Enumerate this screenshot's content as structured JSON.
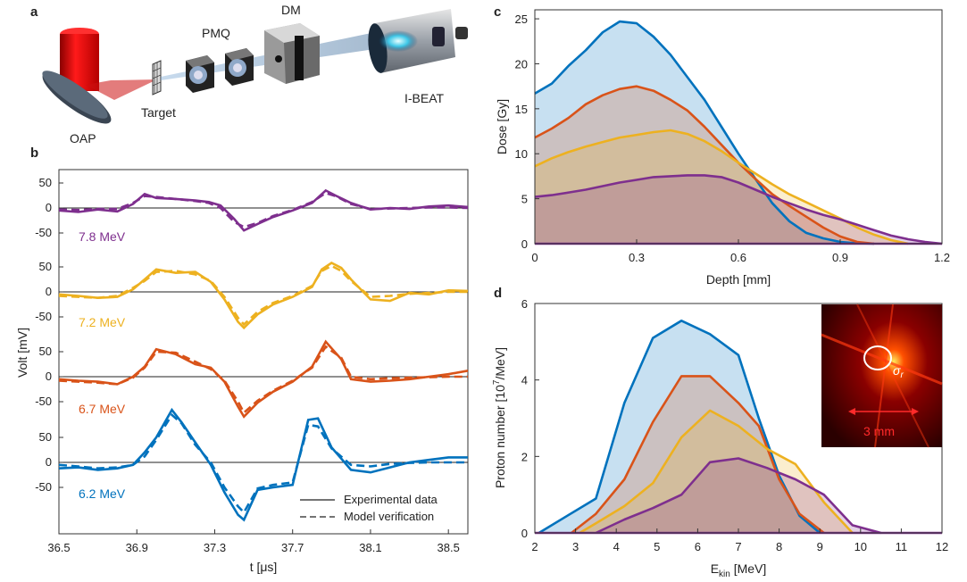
{
  "panel_labels": [
    "a",
    "b",
    "c",
    "d"
  ],
  "setup_labels": {
    "pmq": "PMQ",
    "dm": "DM",
    "target": "Target",
    "oap": "OAP",
    "ibeat": "I-BEAT"
  },
  "inset": {
    "sigma_label": "σ",
    "sigma_sub": "r",
    "scale_label": "3 mm"
  },
  "colors": {
    "blue": "#0072bd",
    "orange": "#d95319",
    "yellow": "#edb120",
    "purple": "#7e2f8e"
  },
  "chart_data": [
    {
      "id": "b",
      "type": "line",
      "xlabel": "t [μs]",
      "ylabel": "Volt [mV]",
      "xlim": [
        36.5,
        38.6
      ],
      "x_ticks": [
        "36.5",
        "36.9",
        "37.3",
        "37.7",
        "38.1",
        "38.5"
      ],
      "y_tick_labels": [
        "50",
        "0",
        "-50"
      ],
      "legend": {
        "placement": "bottom-right",
        "entries": [
          {
            "label": "Experimental data",
            "style": "solid"
          },
          {
            "label": "Model verification",
            "style": "dashed"
          }
        ]
      },
      "series": [
        {
          "name": "7.8 MeV",
          "color": "purple",
          "x": [
            36.5,
            36.6,
            36.7,
            36.8,
            36.88,
            36.94,
            37.0,
            37.1,
            37.2,
            37.27,
            37.33,
            37.4,
            37.45,
            37.52,
            37.6,
            37.7,
            37.8,
            37.87,
            37.92,
            38.0,
            38.1,
            38.2,
            38.3,
            38.4,
            38.5,
            38.6
          ],
          "experimental": [
            -5,
            -8,
            -3,
            -7,
            8,
            28,
            20,
            18,
            15,
            12,
            5,
            -22,
            -45,
            -32,
            -18,
            -5,
            10,
            35,
            25,
            10,
            -3,
            0,
            -2,
            3,
            5,
            2
          ],
          "model": [
            -3,
            -4,
            -2,
            -2,
            10,
            24,
            22,
            18,
            14,
            10,
            0,
            -28,
            -38,
            -30,
            -16,
            -4,
            12,
            30,
            24,
            8,
            -2,
            -1,
            0,
            1,
            1,
            0
          ]
        },
        {
          "name": "7.2 MeV",
          "color": "yellow",
          "x": [
            36.5,
            36.6,
            36.7,
            36.8,
            36.88,
            36.94,
            37.0,
            37.1,
            37.2,
            37.28,
            37.35,
            37.42,
            37.45,
            37.52,
            37.6,
            37.7,
            37.8,
            37.85,
            37.9,
            37.95,
            38.0,
            38.1,
            38.2,
            38.3,
            38.4,
            38.5,
            38.6
          ],
          "experimental": [
            -5,
            -8,
            -12,
            -10,
            5,
            25,
            45,
            38,
            40,
            20,
            -15,
            -60,
            -72,
            -45,
            -25,
            -10,
            10,
            45,
            58,
            48,
            25,
            -15,
            -18,
            -2,
            -5,
            3,
            2
          ],
          "model": [
            -8,
            -10,
            -12,
            -8,
            8,
            22,
            40,
            42,
            35,
            22,
            -10,
            -52,
            -65,
            -40,
            -22,
            -8,
            12,
            42,
            52,
            42,
            22,
            -10,
            -8,
            -4,
            -2,
            0,
            0
          ]
        },
        {
          "name": "6.7 MeV",
          "color": "orange",
          "x": [
            36.5,
            36.6,
            36.7,
            36.8,
            36.88,
            36.94,
            37.0,
            37.1,
            37.2,
            37.28,
            37.35,
            37.42,
            37.45,
            37.52,
            37.6,
            37.7,
            37.8,
            37.87,
            37.95,
            38.0,
            38.1,
            38.2,
            38.3,
            38.4,
            38.5,
            38.6
          ],
          "experimental": [
            -5,
            -8,
            -10,
            -15,
            0,
            20,
            55,
            45,
            25,
            18,
            -10,
            -60,
            -80,
            -52,
            -30,
            -10,
            20,
            70,
            35,
            -5,
            -10,
            -8,
            -5,
            0,
            5,
            12
          ],
          "model": [
            -8,
            -10,
            -12,
            -15,
            -2,
            18,
            50,
            48,
            30,
            15,
            -8,
            -50,
            -72,
            -48,
            -28,
            -8,
            18,
            60,
            38,
            0,
            -5,
            -3,
            -2,
            -1,
            0,
            0
          ]
        },
        {
          "name": "6.2 MeV",
          "color": "blue",
          "x": [
            36.5,
            36.6,
            36.7,
            36.8,
            36.88,
            36.94,
            37.0,
            37.08,
            37.13,
            37.2,
            37.28,
            37.35,
            37.42,
            37.45,
            37.52,
            37.6,
            37.7,
            37.78,
            37.83,
            37.9,
            38.0,
            38.1,
            38.2,
            38.3,
            38.4,
            38.5,
            38.6
          ],
          "experimental": [
            -12,
            -10,
            -15,
            -12,
            -5,
            20,
            50,
            105,
            80,
            40,
            -5,
            -60,
            -105,
            -115,
            -55,
            -50,
            -45,
            85,
            88,
            30,
            -15,
            -20,
            -10,
            0,
            5,
            10,
            10
          ],
          "model": [
            -5,
            -8,
            -12,
            -10,
            -5,
            12,
            45,
            95,
            78,
            35,
            0,
            -50,
            -88,
            -100,
            -52,
            -45,
            -40,
            75,
            72,
            28,
            -5,
            -8,
            -3,
            -1,
            0,
            0,
            0
          ]
        }
      ]
    },
    {
      "id": "c",
      "type": "area",
      "xlabel": "Depth [mm]",
      "ylabel": "Dose [Gy]",
      "xlim": [
        0,
        1.2
      ],
      "ylim": [
        0,
        26
      ],
      "x_ticks": [
        "0",
        "0.3",
        "0.6",
        "0.9",
        "1.2"
      ],
      "y_ticks": [
        "0",
        "5",
        "10",
        "15",
        "20",
        "25"
      ],
      "series": [
        {
          "color": "blue",
          "x": [
            0,
            0.05,
            0.1,
            0.15,
            0.2,
            0.25,
            0.3,
            0.35,
            0.4,
            0.45,
            0.5,
            0.55,
            0.6,
            0.65,
            0.7,
            0.75,
            0.8,
            0.85,
            0.9,
            0.95,
            1.0
          ],
          "y": [
            16.7,
            17.8,
            19.8,
            21.5,
            23.5,
            24.7,
            24.5,
            23.0,
            21.0,
            18.5,
            16.0,
            13.0,
            10.0,
            7.2,
            4.5,
            2.5,
            1.2,
            0.6,
            0.2,
            0.05,
            0
          ]
        },
        {
          "color": "orange",
          "x": [
            0,
            0.05,
            0.1,
            0.15,
            0.2,
            0.25,
            0.3,
            0.35,
            0.4,
            0.45,
            0.5,
            0.55,
            0.6,
            0.65,
            0.7,
            0.75,
            0.8,
            0.85,
            0.9,
            0.95,
            1.0
          ],
          "y": [
            11.8,
            12.8,
            14.0,
            15.5,
            16.5,
            17.2,
            17.5,
            17.0,
            16.0,
            14.8,
            13.0,
            11.0,
            9.0,
            7.2,
            5.5,
            4.2,
            3.0,
            1.8,
            0.8,
            0.2,
            0
          ]
        },
        {
          "color": "yellow",
          "x": [
            0,
            0.05,
            0.1,
            0.15,
            0.2,
            0.25,
            0.3,
            0.35,
            0.4,
            0.45,
            0.5,
            0.55,
            0.6,
            0.65,
            0.7,
            0.75,
            0.8,
            0.85,
            0.9,
            0.95,
            1.0,
            1.05,
            1.1
          ],
          "y": [
            8.6,
            9.5,
            10.2,
            10.8,
            11.3,
            11.8,
            12.1,
            12.4,
            12.6,
            12.2,
            11.4,
            10.3,
            9.0,
            7.8,
            6.6,
            5.5,
            4.6,
            3.7,
            2.8,
            1.8,
            1.0,
            0.4,
            0
          ]
        },
        {
          "color": "purple",
          "x": [
            0,
            0.05,
            0.1,
            0.15,
            0.2,
            0.25,
            0.3,
            0.35,
            0.4,
            0.45,
            0.5,
            0.55,
            0.6,
            0.65,
            0.7,
            0.75,
            0.8,
            0.85,
            0.9,
            0.95,
            1.0,
            1.05,
            1.1,
            1.15,
            1.2
          ],
          "y": [
            5.2,
            5.4,
            5.7,
            6.0,
            6.4,
            6.8,
            7.1,
            7.4,
            7.5,
            7.6,
            7.6,
            7.4,
            6.8,
            6.0,
            5.2,
            4.5,
            3.8,
            3.2,
            2.7,
            2.1,
            1.5,
            0.9,
            0.5,
            0.2,
            0
          ]
        }
      ]
    },
    {
      "id": "d",
      "type": "area",
      "xlabel": "E",
      "xlabel_sub": "kin",
      "xlabel_unit": " [MeV]",
      "ylabel": "Proton number  [10",
      "ylabel_sup": "7",
      "ylabel_unit": "/MeV]",
      "xlim": [
        2,
        12
      ],
      "ylim": [
        0,
        6
      ],
      "x_ticks": [
        "2",
        "3",
        "4",
        "5",
        "6",
        "7",
        "8",
        "9",
        "10",
        "11",
        "12"
      ],
      "y_ticks": [
        "0",
        "2",
        "4",
        "6"
      ],
      "series": [
        {
          "color": "blue",
          "x": [
            2.1,
            2.8,
            3.5,
            4.2,
            4.9,
            5.6,
            6.3,
            7.0,
            7.5,
            8.0,
            8.5,
            9.0
          ],
          "y": [
            0,
            0.45,
            0.9,
            3.4,
            5.1,
            5.55,
            5.2,
            4.65,
            3.0,
            1.5,
            0.45,
            0
          ]
        },
        {
          "color": "orange",
          "x": [
            2.9,
            3.5,
            4.2,
            4.9,
            5.6,
            6.3,
            7.0,
            7.5,
            8.0,
            8.5,
            9.1
          ],
          "y": [
            0,
            0.5,
            1.4,
            2.9,
            4.1,
            4.1,
            3.4,
            2.8,
            1.4,
            0.5,
            0
          ]
        },
        {
          "color": "yellow",
          "x": [
            3.1,
            3.5,
            4.2,
            4.9,
            5.6,
            6.3,
            7.0,
            7.7,
            8.4,
            9.1,
            9.8
          ],
          "y": [
            0,
            0.25,
            0.7,
            1.3,
            2.5,
            3.2,
            2.8,
            2.2,
            1.8,
            0.8,
            0
          ]
        },
        {
          "color": "purple",
          "x": [
            3.5,
            4.2,
            4.9,
            5.6,
            6.3,
            7.0,
            7.7,
            8.4,
            9.1,
            9.8,
            10.5
          ],
          "y": [
            0,
            0.35,
            0.65,
            1.0,
            1.85,
            1.95,
            1.7,
            1.4,
            1.0,
            0.2,
            0
          ]
        }
      ]
    }
  ]
}
